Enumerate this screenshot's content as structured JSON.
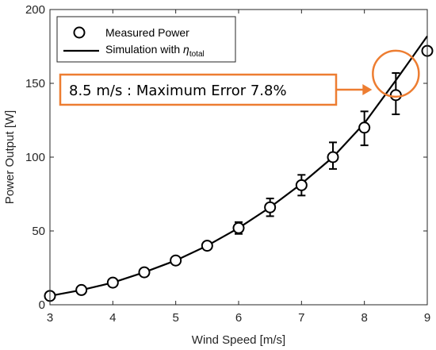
{
  "chart_data": {
    "type": "line",
    "xlabel": "Wind Speed [m/s]",
    "ylabel": "Power Output [W]",
    "xlim": [
      3,
      9
    ],
    "ylim": [
      0,
      200
    ],
    "xticks": [
      3,
      4,
      5,
      6,
      7,
      8,
      9
    ],
    "yticks": [
      0,
      50,
      100,
      150,
      200
    ],
    "grid": false,
    "legend_position": "top-left",
    "series": [
      {
        "name": "Measured Power",
        "kind": "markers-with-errorbars",
        "marker": "open-circle",
        "color": "#000000",
        "x": [
          3,
          3.5,
          4,
          4.5,
          5,
          5.5,
          6,
          6.5,
          7,
          7.5,
          8,
          8.5,
          9
        ],
        "y": [
          6,
          10,
          15,
          22,
          30,
          40,
          52,
          66,
          81,
          100,
          120,
          142,
          172
        ],
        "err_low": [
          6,
          10,
          15,
          22,
          29,
          38,
          48,
          60,
          74,
          92,
          108,
          129,
          172
        ],
        "err_high": [
          6,
          10,
          15,
          22,
          31,
          42,
          56,
          72,
          88,
          110,
          131,
          157,
          172
        ]
      },
      {
        "name": "Simulation with η_total",
        "name_main": "Simulation with ",
        "name_symbol": "η",
        "name_subscript": "total",
        "kind": "line",
        "color": "#000000",
        "x": [
          3,
          3.5,
          4,
          4.5,
          5,
          5.5,
          6,
          6.5,
          7,
          7.5,
          8,
          8.5,
          9
        ],
        "y": [
          6,
          10,
          15,
          22,
          30,
          40,
          52,
          66,
          82,
          100,
          123,
          152,
          182
        ]
      }
    ],
    "annotation": {
      "text": "8.5 m/s : Maximum  Error 7.8%",
      "target_x": 8.5,
      "target_y": 142,
      "color": "#ED7D31"
    }
  }
}
